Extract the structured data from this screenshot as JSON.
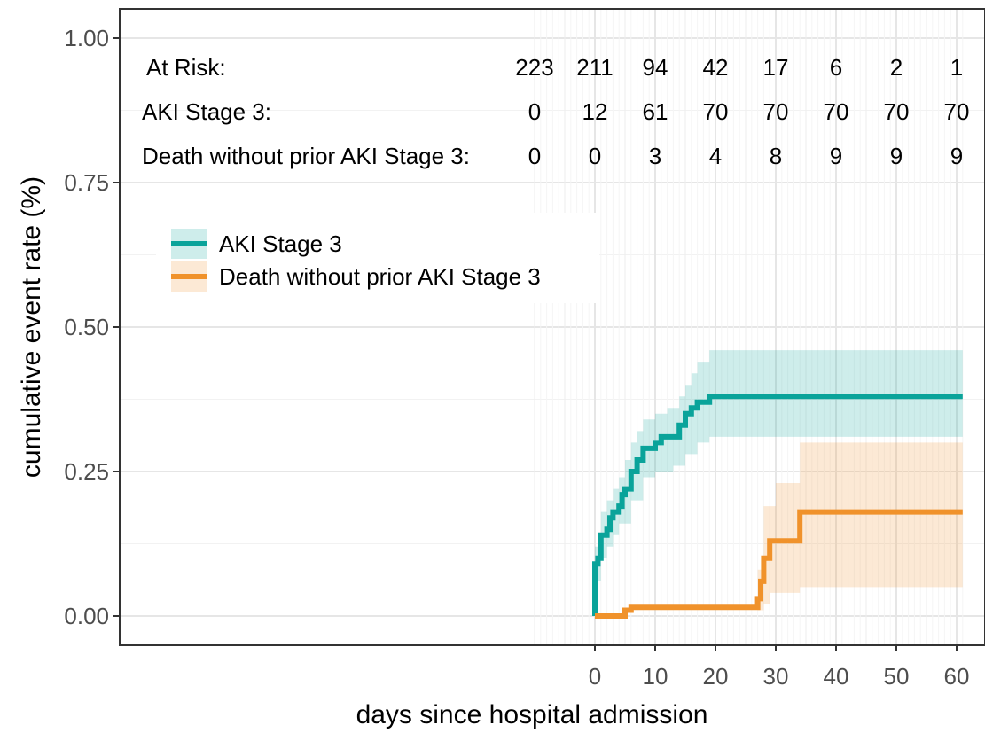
{
  "chart_data": {
    "type": "line",
    "title": "",
    "xlabel": "days since hospital admission",
    "ylabel": "cumulative event rate (%)",
    "xlim": [
      -10,
      63
    ],
    "ylim": [
      -0.05,
      1.05
    ],
    "x_ticks": [
      0,
      10,
      20,
      30,
      40,
      50,
      60
    ],
    "x_tick_labels": [
      "0",
      "10",
      "20",
      "30",
      "40",
      "50",
      "60"
    ],
    "y_ticks": [
      0,
      0.25,
      0.5,
      0.75,
      1.0
    ],
    "y_tick_labels": [
      "0.00",
      "0.25",
      "0.50",
      "0.75",
      "1.00"
    ],
    "grid": true,
    "legend_position": "top-left",
    "series": [
      {
        "name": "AKI Stage 3",
        "color": "#0aa39a",
        "step": true,
        "points": [
          [
            0,
            0
          ],
          [
            0,
            0.09
          ],
          [
            0.5,
            0.1
          ],
          [
            1,
            0.14
          ],
          [
            2,
            0.15
          ],
          [
            2.5,
            0.17
          ],
          [
            3,
            0.18
          ],
          [
            4,
            0.19
          ],
          [
            4.5,
            0.21
          ],
          [
            5,
            0.22
          ],
          [
            6,
            0.25
          ],
          [
            7,
            0.27
          ],
          [
            8,
            0.29
          ],
          [
            10,
            0.3
          ],
          [
            11,
            0.31
          ],
          [
            14,
            0.33
          ],
          [
            15,
            0.35
          ],
          [
            16,
            0.36
          ],
          [
            17,
            0.37
          ],
          [
            19,
            0.38
          ],
          [
            61,
            0.38
          ]
        ],
        "ci_lower": [
          [
            0,
            0
          ],
          [
            0,
            0.06
          ],
          [
            1,
            0.1
          ],
          [
            2,
            0.12
          ],
          [
            3,
            0.14
          ],
          [
            4,
            0.16
          ],
          [
            6,
            0.2
          ],
          [
            8,
            0.24
          ],
          [
            10,
            0.25
          ],
          [
            13,
            0.26
          ],
          [
            15,
            0.28
          ],
          [
            17,
            0.3
          ],
          [
            19,
            0.31
          ],
          [
            61,
            0.31
          ]
        ],
        "ci_upper": [
          [
            0,
            0.12
          ],
          [
            1,
            0.18
          ],
          [
            2,
            0.2
          ],
          [
            3,
            0.22
          ],
          [
            4,
            0.24
          ],
          [
            5,
            0.27
          ],
          [
            6,
            0.3
          ],
          [
            7,
            0.32
          ],
          [
            8,
            0.34
          ],
          [
            10,
            0.35
          ],
          [
            12,
            0.36
          ],
          [
            14,
            0.38
          ],
          [
            15,
            0.4
          ],
          [
            16,
            0.42
          ],
          [
            17,
            0.44
          ],
          [
            19,
            0.46
          ],
          [
            61,
            0.46
          ]
        ]
      },
      {
        "name": "Death without prior AKI Stage 3",
        "color": "#f0922b",
        "step": true,
        "points": [
          [
            0,
            0
          ],
          [
            5,
            0.01
          ],
          [
            6,
            0.015
          ],
          [
            27,
            0.03
          ],
          [
            27.5,
            0.06
          ],
          [
            28,
            0.1
          ],
          [
            29,
            0.13
          ],
          [
            34,
            0.18
          ],
          [
            61,
            0.18
          ]
        ],
        "ci_lower": [
          [
            0,
            0
          ],
          [
            27,
            0.01
          ],
          [
            28,
            0.02
          ],
          [
            29,
            0.04
          ],
          [
            34,
            0.05
          ],
          [
            61,
            0.05
          ]
        ],
        "ci_upper": [
          [
            0,
            0
          ],
          [
            27,
            0.08
          ],
          [
            28,
            0.19
          ],
          [
            30,
            0.23
          ],
          [
            34,
            0.3
          ],
          [
            61,
            0.3
          ]
        ]
      }
    ],
    "risk_table": {
      "times": [
        -10,
        0,
        10,
        20,
        30,
        40,
        50,
        60
      ],
      "rows": [
        {
          "label": "At Risk:",
          "values": [
            "223",
            "211",
            "94",
            "42",
            "17",
            "6",
            "2",
            "1"
          ]
        },
        {
          "label": "AKI Stage 3:",
          "values": [
            "0",
            "12",
            "61",
            "70",
            "70",
            "70",
            "70",
            "70"
          ]
        },
        {
          "label": "Death without prior AKI Stage 3:",
          "values": [
            "0",
            "0",
            "3",
            "4",
            "8",
            "9",
            "9",
            "9"
          ]
        }
      ]
    }
  }
}
